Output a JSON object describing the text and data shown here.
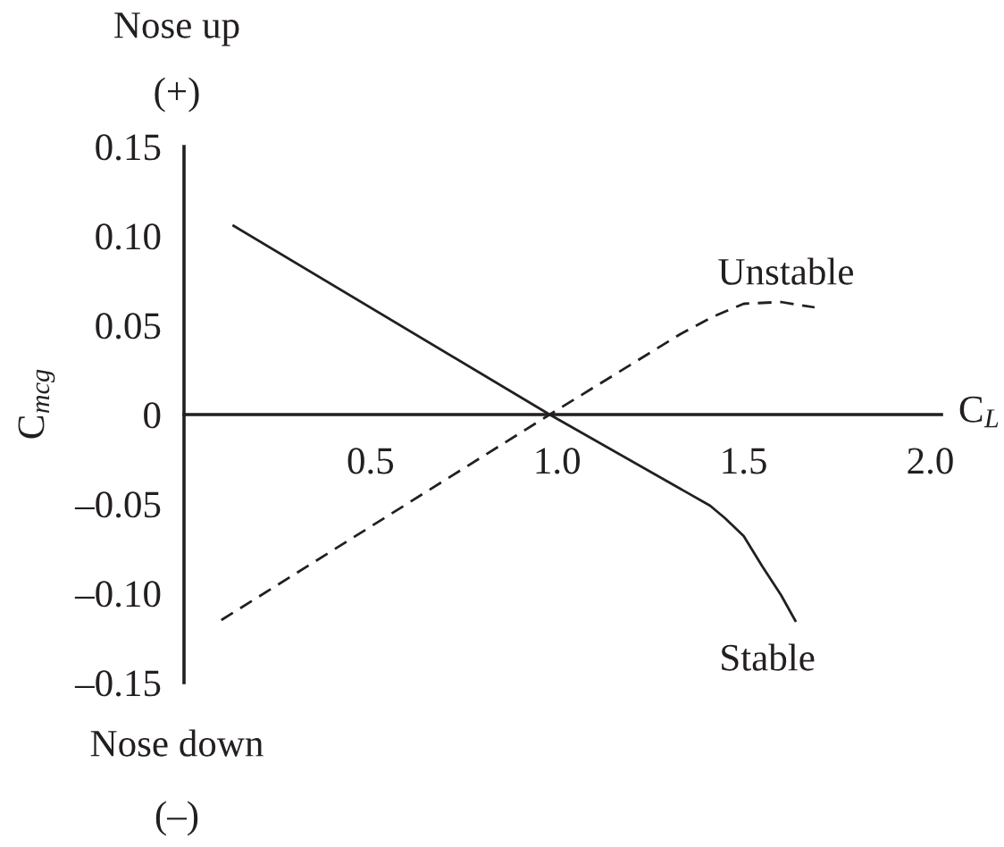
{
  "chart_data": {
    "type": "line",
    "xlabel": "C$_{L}$",
    "ylabel": "C$_{mcg}$",
    "annotations": [
      "Nose up",
      "(+)",
      "Nose down",
      "(–)"
    ],
    "xlim": [
      0,
      2.03
    ],
    "ylim": [
      -0.15,
      0.15
    ],
    "xticks": [
      {
        "value": 0.5,
        "label": "0.5"
      },
      {
        "value": 1.0,
        "label": "1.0"
      },
      {
        "value": 1.5,
        "label": "1.5"
      },
      {
        "value": 2.0,
        "label": "2.0"
      }
    ],
    "yticks": [
      {
        "value": -0.15,
        "label": "–0.15"
      },
      {
        "value": -0.1,
        "label": "–0.10"
      },
      {
        "value": -0.05,
        "label": "–0.05"
      },
      {
        "value": 0,
        "label": "0"
      },
      {
        "value": 0.05,
        "label": "0.05"
      },
      {
        "value": 0.1,
        "label": "0.10"
      },
      {
        "value": 0.15,
        "label": "0.15"
      }
    ],
    "grid": false,
    "legend": false,
    "series": [
      {
        "name": "Stable",
        "color": "#231f20",
        "line_style": "solid",
        "x": [
          0.13,
          0.98,
          1.41,
          1.45,
          1.5,
          1.55,
          1.6,
          1.64
        ],
        "values": [
          0.106,
          0,
          -0.051,
          -0.058,
          -0.068,
          -0.085,
          -0.101,
          -0.116
        ]
      },
      {
        "name": "Unstable",
        "color": "#231f20",
        "line_style": "dashed",
        "x": [
          0.1,
          0.98,
          1.33,
          1.42,
          1.5,
          1.6,
          1.69
        ],
        "values": [
          -0.115,
          0,
          0.045,
          0.055,
          0.062,
          0.063,
          0.06
        ]
      }
    ]
  }
}
